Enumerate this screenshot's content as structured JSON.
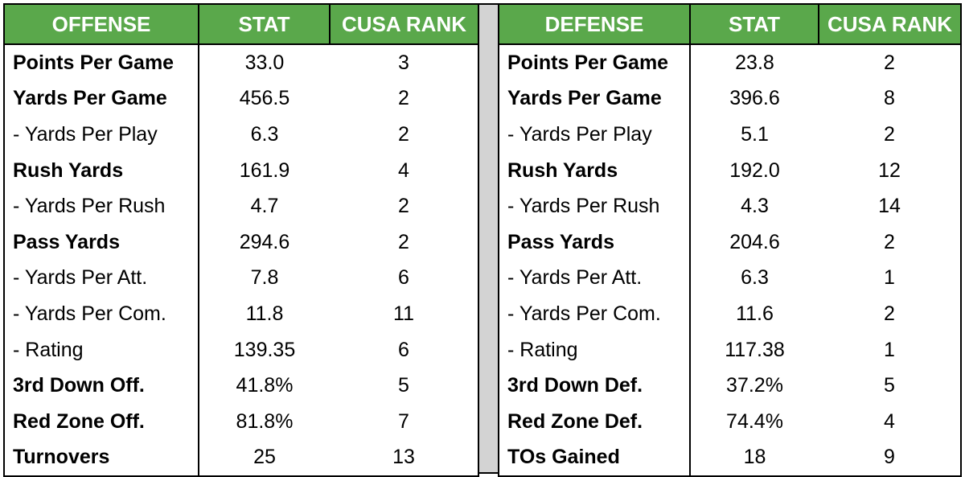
{
  "offense": {
    "headers": [
      "OFFENSE",
      "STAT",
      "CUSA RANK"
    ],
    "rows": [
      {
        "label": "Points Per Game",
        "stat": "33.0",
        "rank": "3",
        "bold": true
      },
      {
        "label": "Yards Per Game",
        "stat": "456.5",
        "rank": "2",
        "bold": true
      },
      {
        "label": "- Yards Per Play",
        "stat": "6.3",
        "rank": "2",
        "bold": false
      },
      {
        "label": "Rush Yards",
        "stat": "161.9",
        "rank": "4",
        "bold": true
      },
      {
        "label": "- Yards Per Rush",
        "stat": "4.7",
        "rank": "2",
        "bold": false
      },
      {
        "label": "Pass Yards",
        "stat": "294.6",
        "rank": "2",
        "bold": true
      },
      {
        "label": "- Yards Per Att.",
        "stat": "7.8",
        "rank": "6",
        "bold": false
      },
      {
        "label": "- Yards Per Com.",
        "stat": "11.8",
        "rank": "11",
        "bold": false
      },
      {
        "label": "- Rating",
        "stat": "139.35",
        "rank": "6",
        "bold": false
      },
      {
        "label": "3rd Down Off.",
        "stat": "41.8%",
        "rank": "5",
        "bold": true
      },
      {
        "label": "Red Zone Off.",
        "stat": "81.8%",
        "rank": "7",
        "bold": true
      },
      {
        "label": "Turnovers",
        "stat": "25",
        "rank": "13",
        "bold": true
      }
    ]
  },
  "defense": {
    "headers": [
      "DEFENSE",
      "STAT",
      "CUSA RANK"
    ],
    "rows": [
      {
        "label": "Points Per Game",
        "stat": "23.8",
        "rank": "2",
        "bold": true
      },
      {
        "label": "Yards Per Game",
        "stat": "396.6",
        "rank": "8",
        "bold": true
      },
      {
        "label": "- Yards Per Play",
        "stat": "5.1",
        "rank": "2",
        "bold": false
      },
      {
        "label": "Rush Yards",
        "stat": "192.0",
        "rank": "12",
        "bold": true
      },
      {
        "label": "- Yards Per Rush",
        "stat": "4.3",
        "rank": "14",
        "bold": false
      },
      {
        "label": "Pass Yards",
        "stat": "204.6",
        "rank": "2",
        "bold": true
      },
      {
        "label": "- Yards Per Att.",
        "stat": "6.3",
        "rank": "1",
        "bold": false
      },
      {
        "label": "- Yards Per Com.",
        "stat": "11.6",
        "rank": "2",
        "bold": false
      },
      {
        "label": "- Rating",
        "stat": "117.38",
        "rank": "1",
        "bold": false
      },
      {
        "label": "3rd Down Def.",
        "stat": "37.2%",
        "rank": "5",
        "bold": true
      },
      {
        "label": "Red Zone Def.",
        "stat": "74.4%",
        "rank": "4",
        "bold": true
      },
      {
        "label": "TOs Gained",
        "stat": "18",
        "rank": "9",
        "bold": true
      }
    ]
  },
  "colors": {
    "header_bg": "#5aa84b",
    "header_text": "#ffffff",
    "divider": "#d3d3d3"
  }
}
